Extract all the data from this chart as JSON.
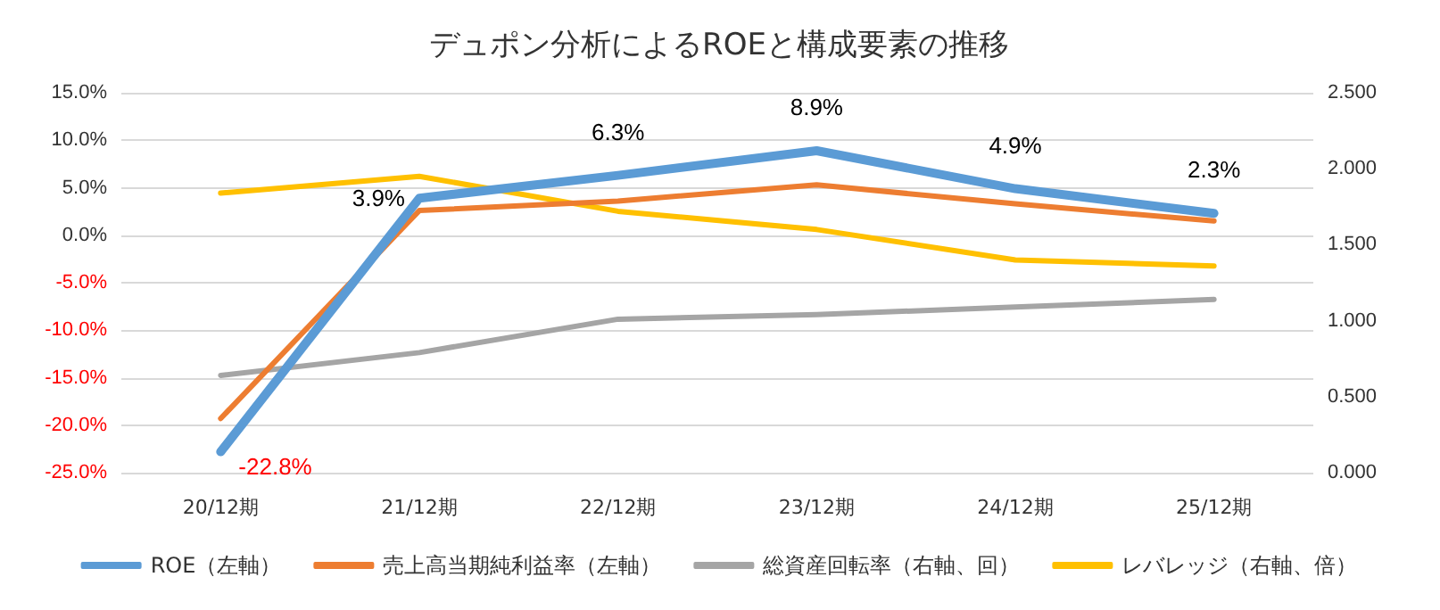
{
  "chart_data": {
    "type": "line",
    "title": "デュポン分析によるROEと構成要素の推移",
    "categories": [
      "20/12期",
      "21/12期",
      "22/12期",
      "23/12期",
      "24/12期",
      "25/12期"
    ],
    "series": [
      {
        "name": "ROE（左軸）",
        "color": "#5b9bd5",
        "values": [
          -22.8,
          3.9,
          6.3,
          8.9,
          4.9,
          2.3
        ],
        "value_labels": [
          "-22.8%",
          "3.9%",
          "6.3%",
          "8.9%",
          "4.9%",
          "2.3%"
        ]
      },
      {
        "name": "売上高当期純利益率（左軸）",
        "color": "#ed7d31",
        "values": [
          -19.3,
          2.6,
          3.6,
          5.3,
          3.3,
          1.5
        ]
      },
      {
        "name": "総資産回転率（右軸、回）",
        "color": "#a5a5a5",
        "axis": "y2",
        "values": [
          0.64,
          0.79,
          1.01,
          1.04,
          1.09,
          1.14
        ]
      },
      {
        "name": "レバレッジ（右軸、倍）",
        "color": "#ffc000",
        "axis": "y2",
        "values": [
          1.84,
          1.95,
          1.72,
          1.6,
          1.4,
          1.36
        ]
      }
    ],
    "ylim": [
      -25,
      15
    ],
    "yticks": [
      {
        "value": -25,
        "label": "-25.0%"
      },
      {
        "value": -20,
        "label": "-20.0%"
      },
      {
        "value": -15,
        "label": "-15.0%"
      },
      {
        "value": -10,
        "label": "-10.0%"
      },
      {
        "value": -5,
        "label": "-5.0%"
      },
      {
        "value": 0,
        "label": "0.0%"
      },
      {
        "value": 5,
        "label": "5.0%"
      },
      {
        "value": 10,
        "label": "10.0%"
      },
      {
        "value": 15,
        "label": "15.0%"
      }
    ],
    "y2lim": [
      0,
      2.5
    ],
    "y2ticks": [
      {
        "value": 0,
        "label": "0.000"
      },
      {
        "value": 0.5,
        "label": "0.500"
      },
      {
        "value": 1,
        "label": "1.000"
      },
      {
        "value": 1.5,
        "label": "1.500"
      },
      {
        "value": 2,
        "label": "2.000"
      },
      {
        "value": 2.5,
        "label": "2.500"
      }
    ],
    "grid": "y",
    "legend": "bottom",
    "marker": "none",
    "line_style": "solid"
  }
}
